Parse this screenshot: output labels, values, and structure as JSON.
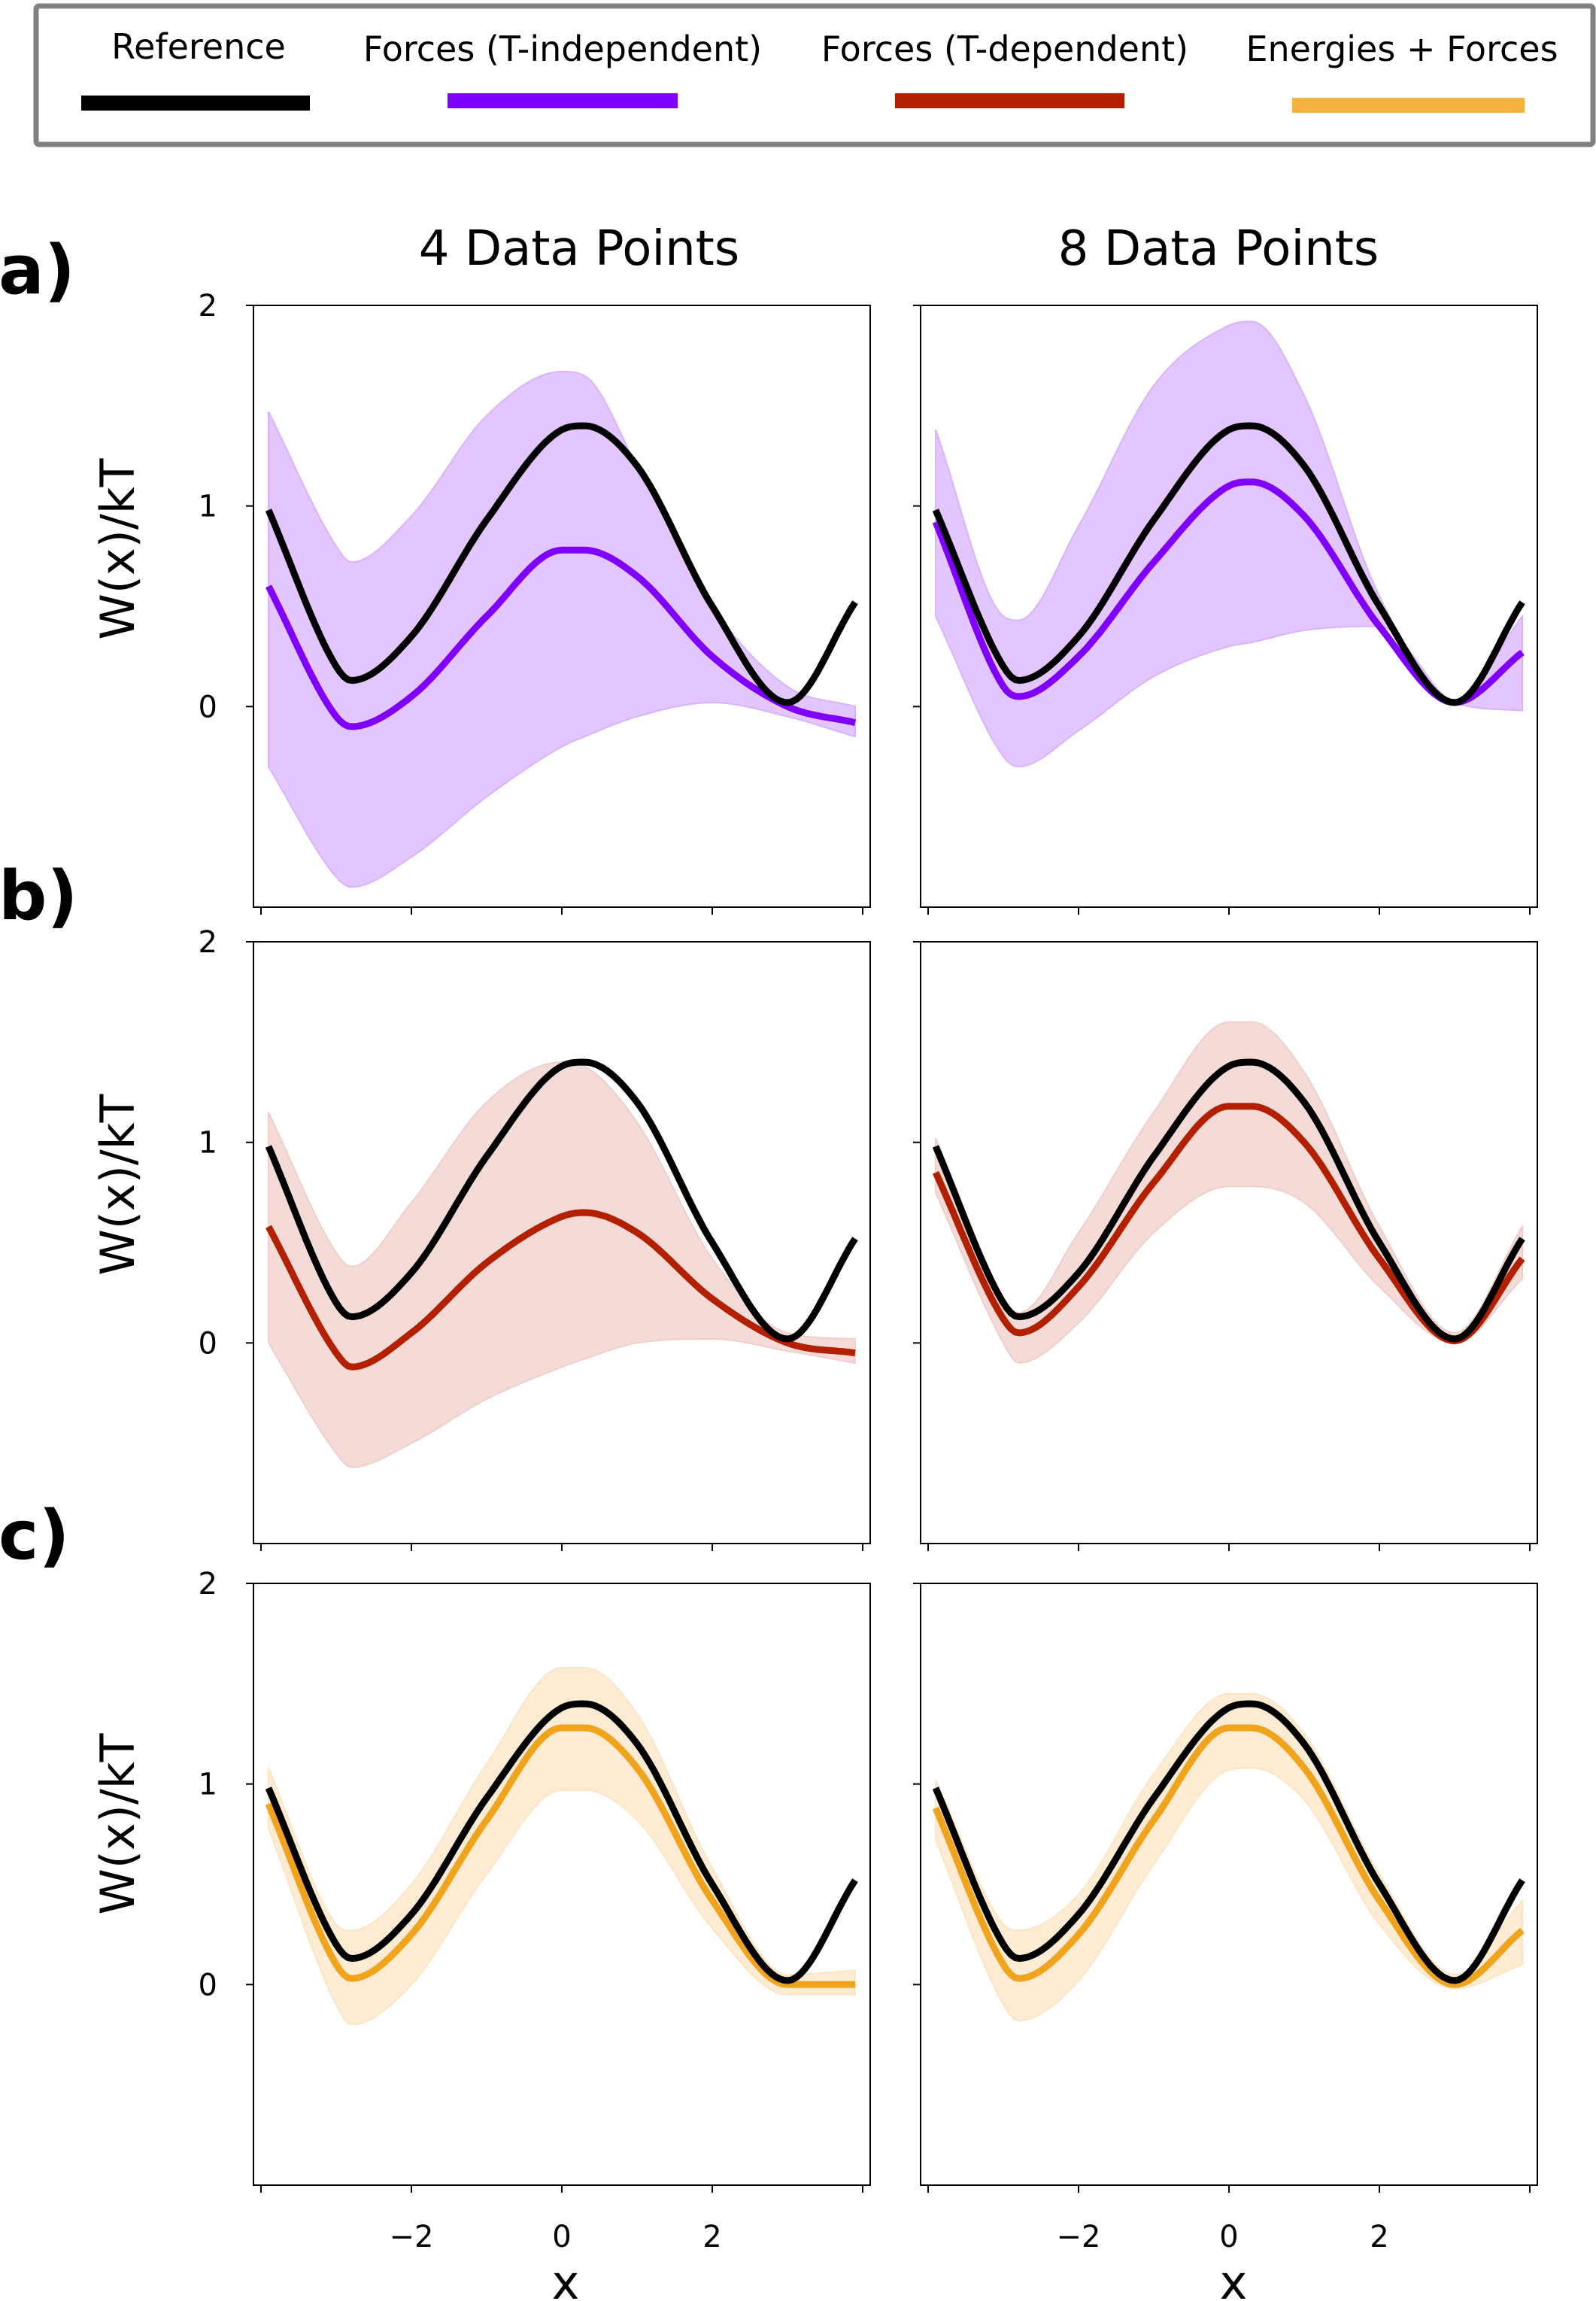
{
  "legend": {
    "entries": [
      {
        "label": "Reference",
        "color": "#000000"
      },
      {
        "label": "Forces (T-independent)",
        "color": "#8000ff"
      },
      {
        "label": "Forces (T-dependent)",
        "color": "#b22000"
      },
      {
        "label": "Energies + Forces",
        "color": "#f5b240"
      }
    ]
  },
  "columns": [
    "4 Data Points",
    "8 Data Points"
  ],
  "rows": [
    "a)",
    "b)",
    "c)"
  ],
  "shared": {
    "ylabel": "W(x)/kT",
    "xlabel": "x",
    "xticks": [
      -2,
      0,
      2
    ],
    "yticks": [
      0,
      1,
      2
    ],
    "xlim": [
      -4.1,
      4.1
    ],
    "ylim": [
      -1,
      2
    ]
  },
  "colors": {
    "band_a": "#d9b3ff",
    "band_b": "#f0cfca",
    "band_c": "#fce5c4",
    "line_c": "#f0a31c"
  },
  "chart_data": [
    {
      "type": "line",
      "panel": "a) 4 Data Points",
      "x": [
        -3.9,
        -3,
        -2.8,
        -2,
        -1,
        0,
        0.3,
        1,
        2,
        3,
        3.9
      ],
      "series": [
        {
          "name": "Reference",
          "y": [
            0.98,
            0.2,
            0.13,
            0.35,
            0.93,
            1.38,
            1.4,
            1.2,
            0.5,
            0.02,
            0.52
          ]
        },
        {
          "name": "Forces (T-independent)",
          "y": [
            0.6,
            -0.05,
            -0.1,
            0.05,
            0.45,
            0.78,
            0.78,
            0.65,
            0.25,
            0.0,
            -0.08
          ]
        }
      ],
      "band": {
        "lower": [
          -0.3,
          -0.85,
          -0.9,
          -0.75,
          -0.45,
          -0.2,
          -0.15,
          -0.05,
          0.02,
          -0.05,
          -0.15
        ],
        "upper": [
          1.47,
          0.8,
          0.72,
          0.95,
          1.45,
          1.67,
          1.65,
          1.2,
          0.5,
          0.1,
          0.0
        ]
      }
    },
    {
      "type": "line",
      "panel": "a) 8 Data Points",
      "x": [
        -3.9,
        -3,
        -2.8,
        -2,
        -1,
        0,
        0.3,
        1,
        2,
        3,
        3.9
      ],
      "series": [
        {
          "name": "Reference",
          "y": [
            0.98,
            0.2,
            0.13,
            0.35,
            0.93,
            1.38,
            1.4,
            1.2,
            0.5,
            0.02,
            0.52
          ]
        },
        {
          "name": "Forces (T-independent)",
          "y": [
            0.92,
            0.1,
            0.05,
            0.25,
            0.72,
            1.1,
            1.12,
            0.95,
            0.4,
            0.02,
            0.27
          ]
        }
      ],
      "band": {
        "lower": [
          0.45,
          -0.25,
          -0.3,
          -0.12,
          0.15,
          0.3,
          0.32,
          0.38,
          0.4,
          0.02,
          -0.02
        ],
        "upper": [
          1.38,
          0.45,
          0.43,
          0.9,
          1.6,
          1.9,
          1.92,
          1.55,
          0.55,
          0.03,
          0.45
        ]
      }
    },
    {
      "type": "line",
      "panel": "b) 4 Data Points",
      "x": [
        -3.9,
        -3,
        -2.8,
        -2,
        -1,
        0,
        0.3,
        1,
        2,
        3,
        3.9
      ],
      "series": [
        {
          "name": "Reference",
          "y": [
            0.98,
            0.2,
            0.13,
            0.35,
            0.93,
            1.38,
            1.4,
            1.2,
            0.5,
            0.02,
            0.52
          ]
        },
        {
          "name": "Forces (T-dependent)",
          "y": [
            0.58,
            -0.05,
            -0.12,
            0.05,
            0.4,
            0.63,
            0.65,
            0.55,
            0.22,
            0.0,
            -0.05
          ]
        }
      ],
      "band": {
        "lower": [
          0.0,
          -0.55,
          -0.62,
          -0.5,
          -0.28,
          -0.12,
          -0.08,
          0.0,
          0.02,
          -0.04,
          -0.1
        ],
        "upper": [
          1.15,
          0.45,
          0.38,
          0.7,
          1.2,
          1.4,
          1.38,
          1.1,
          0.42,
          0.05,
          0.02
        ]
      }
    },
    {
      "type": "line",
      "panel": "b) 8 Data Points",
      "x": [
        -3.9,
        -3,
        -2.8,
        -2,
        -1,
        0,
        0.3,
        1,
        2,
        3,
        3.9
      ],
      "series": [
        {
          "name": "Reference",
          "y": [
            0.98,
            0.2,
            0.13,
            0.35,
            0.93,
            1.38,
            1.4,
            1.2,
            0.5,
            0.02,
            0.52
          ]
        },
        {
          "name": "Forces (T-dependent)",
          "y": [
            0.85,
            0.12,
            0.05,
            0.28,
            0.8,
            1.18,
            1.18,
            1.0,
            0.42,
            0.01,
            0.42
          ]
        }
      ],
      "band": {
        "lower": [
          0.75,
          0.0,
          -0.1,
          0.1,
          0.55,
          0.78,
          0.78,
          0.7,
          0.28,
          0.0,
          0.32
        ],
        "upper": [
          1.02,
          0.22,
          0.15,
          0.55,
          1.15,
          1.6,
          1.6,
          1.35,
          0.58,
          0.05,
          0.58
        ]
      }
    },
    {
      "type": "line",
      "panel": "c) 4 Data Points",
      "x": [
        -3.9,
        -3,
        -2.8,
        -2,
        -1,
        0,
        0.3,
        1,
        2,
        3,
        3.9
      ],
      "series": [
        {
          "name": "Reference",
          "y": [
            0.98,
            0.2,
            0.13,
            0.35,
            0.93,
            1.38,
            1.4,
            1.2,
            0.5,
            0.02,
            0.52
          ]
        },
        {
          "name": "Energies + Forces",
          "y": [
            0.9,
            0.1,
            0.03,
            0.25,
            0.82,
            1.28,
            1.28,
            1.08,
            0.42,
            0.0,
            0.0
          ]
        }
      ],
      "band": {
        "lower": [
          0.78,
          -0.1,
          -0.2,
          0.0,
          0.55,
          0.97,
          0.97,
          0.82,
          0.28,
          -0.05,
          -0.05
        ],
        "upper": [
          1.08,
          0.3,
          0.27,
          0.5,
          1.1,
          1.58,
          1.58,
          1.35,
          0.58,
          0.05,
          0.07
        ]
      }
    },
    {
      "type": "line",
      "panel": "c) 8 Data Points",
      "x": [
        -3.9,
        -3,
        -2.8,
        -2,
        -1,
        0,
        0.3,
        1,
        2,
        3,
        3.9
      ],
      "series": [
        {
          "name": "Reference",
          "y": [
            0.98,
            0.2,
            0.13,
            0.35,
            0.93,
            1.38,
            1.4,
            1.2,
            0.5,
            0.02,
            0.52
          ]
        },
        {
          "name": "Energies + Forces",
          "y": [
            0.88,
            0.1,
            0.03,
            0.25,
            0.82,
            1.28,
            1.28,
            1.08,
            0.42,
            0.0,
            0.27
          ]
        }
      ],
      "band": {
        "lower": [
          0.72,
          -0.1,
          -0.18,
          0.02,
          0.6,
          1.07,
          1.08,
          0.92,
          0.3,
          -0.02,
          0.1
        ],
        "upper": [
          1.02,
          0.3,
          0.27,
          0.45,
          1.05,
          1.45,
          1.45,
          1.25,
          0.55,
          0.05,
          0.42
        ]
      }
    }
  ]
}
